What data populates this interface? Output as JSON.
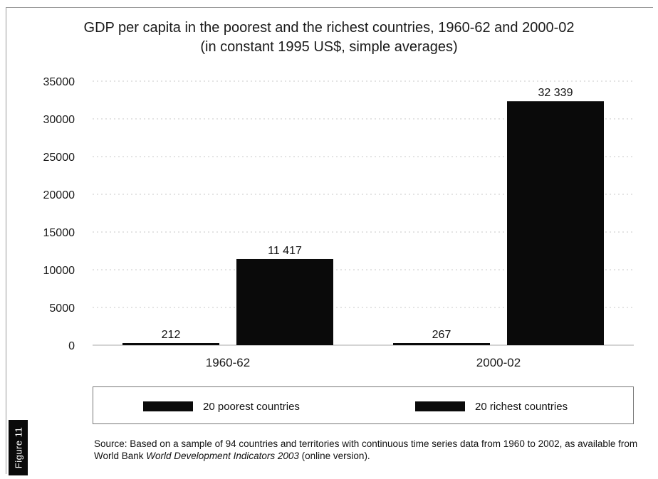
{
  "chart_data": {
    "type": "bar",
    "title": "GDP per capita in the poorest and the richest countries, 1960-62 and 2000-02",
    "subtitle": "(in constant 1995 US$, simple averages)",
    "categories": [
      "1960-62",
      "2000-02"
    ],
    "series": [
      {
        "name": "20 poorest countries",
        "values": [
          212,
          267
        ],
        "labels": [
          "212",
          "267"
        ]
      },
      {
        "name": "20 richest countries",
        "values": [
          11417,
          32339
        ],
        "labels": [
          "11 417",
          "32 339"
        ]
      }
    ],
    "ylim": [
      0,
      35000
    ],
    "yticks": [
      0,
      5000,
      10000,
      15000,
      20000,
      25000,
      30000,
      35000
    ],
    "ytick_labels": [
      "0",
      "5000",
      "10000",
      "15000",
      "20000",
      "25000",
      "30000",
      "35000"
    ],
    "grid": true,
    "legend_position": "bottom",
    "bar_color": "#0a0a0a"
  },
  "source": {
    "prefix": "Source: Based on a sample of 94 countries and territories with continuous time series data from 1960 to 2002, as available from World Bank ",
    "italic": "World Development Indicators 2003",
    "suffix": " (online version)."
  },
  "figure_tab": "Figure 11"
}
